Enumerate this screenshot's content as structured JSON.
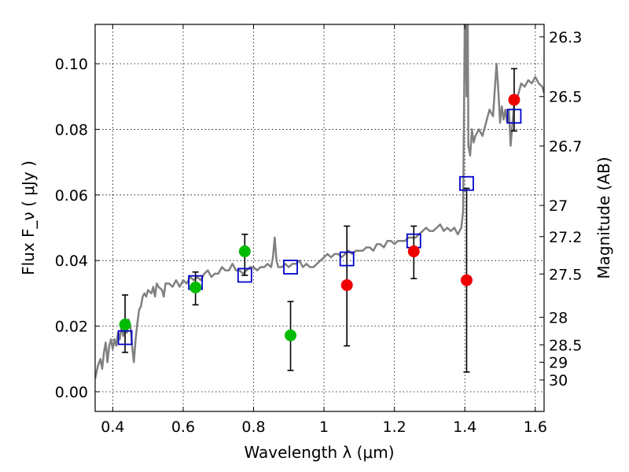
{
  "chart_data": {
    "type": "scatter",
    "xlabel": "Wavelength  λ (μm)",
    "ylabel": "Flux  F_ν  ( μJy )",
    "y2label": "Magnitude (AB)",
    "xlim": [
      0.35,
      1.625
    ],
    "ylim": [
      -0.006,
      0.112
    ],
    "grid": true,
    "x_ticks": [
      0.4,
      0.6,
      0.8,
      1.0,
      1.2,
      1.4,
      1.6
    ],
    "x_tick_labels": [
      "0.4",
      "0.6",
      "0.8",
      "1",
      "1.2",
      "1.4",
      "1.6"
    ],
    "y_ticks": [
      0.0,
      0.02,
      0.04,
      0.06,
      0.08,
      0.1
    ],
    "y_tick_labels": [
      "0.00",
      "0.02",
      "0.04",
      "0.06",
      "0.08",
      "0.10"
    ],
    "y2_ticks": [
      {
        "label": "26.3",
        "flux": 0.1082
      },
      {
        "label": "26.5",
        "flux": 0.09
      },
      {
        "label": "26.7",
        "flux": 0.0749
      },
      {
        "label": "27",
        "flux": 0.0568
      },
      {
        "label": "27.2",
        "flux": 0.0473
      },
      {
        "label": "27.5",
        "flux": 0.0359
      },
      {
        "label": "28",
        "flux": 0.0227
      },
      {
        "label": "28.5",
        "flux": 0.0143
      },
      {
        "label": "29",
        "flux": 0.009
      },
      {
        "label": "30",
        "flux": 0.0036
      }
    ],
    "series": [
      {
        "marker": "line",
        "color": "#808080",
        "points": [
          [
            0.35,
            0.004
          ],
          [
            0.358,
            0.008
          ],
          [
            0.365,
            0.01
          ],
          [
            0.37,
            0.007
          ],
          [
            0.375,
            0.012
          ],
          [
            0.38,
            0.015
          ],
          [
            0.385,
            0.009
          ],
          [
            0.39,
            0.014
          ],
          [
            0.395,
            0.016
          ],
          [
            0.4,
            0.013
          ],
          [
            0.405,
            0.016
          ],
          [
            0.41,
            0.014
          ],
          [
            0.415,
            0.018
          ],
          [
            0.42,
            0.016
          ],
          [
            0.425,
            0.02
          ],
          [
            0.43,
            0.017
          ],
          [
            0.435,
            0.021
          ],
          [
            0.44,
            0.018
          ],
          [
            0.445,
            0.022
          ],
          [
            0.45,
            0.02
          ],
          [
            0.455,
            0.014
          ],
          [
            0.46,
            0.009
          ],
          [
            0.465,
            0.016
          ],
          [
            0.47,
            0.021
          ],
          [
            0.475,
            0.025
          ],
          [
            0.48,
            0.026
          ],
          [
            0.485,
            0.029
          ],
          [
            0.49,
            0.03
          ],
          [
            0.495,
            0.029
          ],
          [
            0.5,
            0.031
          ],
          [
            0.51,
            0.03
          ],
          [
            0.515,
            0.032
          ],
          [
            0.52,
            0.029
          ],
          [
            0.525,
            0.033
          ],
          [
            0.53,
            0.032
          ],
          [
            0.54,
            0.031
          ],
          [
            0.545,
            0.029
          ],
          [
            0.55,
            0.033
          ],
          [
            0.56,
            0.033
          ],
          [
            0.57,
            0.032
          ],
          [
            0.58,
            0.034
          ],
          [
            0.59,
            0.032
          ],
          [
            0.6,
            0.034
          ],
          [
            0.61,
            0.033
          ],
          [
            0.62,
            0.035
          ],
          [
            0.63,
            0.034
          ],
          [
            0.64,
            0.035
          ],
          [
            0.65,
            0.034
          ],
          [
            0.66,
            0.036
          ],
          [
            0.67,
            0.037
          ],
          [
            0.68,
            0.035
          ],
          [
            0.69,
            0.036
          ],
          [
            0.7,
            0.036
          ],
          [
            0.71,
            0.038
          ],
          [
            0.72,
            0.037
          ],
          [
            0.73,
            0.037
          ],
          [
            0.74,
            0.039
          ],
          [
            0.75,
            0.037
          ],
          [
            0.76,
            0.037
          ],
          [
            0.77,
            0.036
          ],
          [
            0.78,
            0.037
          ],
          [
            0.79,
            0.038
          ],
          [
            0.8,
            0.038
          ],
          [
            0.81,
            0.037
          ],
          [
            0.82,
            0.038
          ],
          [
            0.83,
            0.038
          ],
          [
            0.84,
            0.039
          ],
          [
            0.85,
            0.038
          ],
          [
            0.855,
            0.041
          ],
          [
            0.86,
            0.047
          ],
          [
            0.865,
            0.04
          ],
          [
            0.87,
            0.038
          ],
          [
            0.88,
            0.038
          ],
          [
            0.89,
            0.039
          ],
          [
            0.9,
            0.038
          ],
          [
            0.91,
            0.039
          ],
          [
            0.92,
            0.039
          ],
          [
            0.93,
            0.04
          ],
          [
            0.94,
            0.038
          ],
          [
            0.95,
            0.039
          ],
          [
            0.96,
            0.038
          ],
          [
            0.97,
            0.038
          ],
          [
            0.98,
            0.039
          ],
          [
            0.99,
            0.04
          ],
          [
            1.0,
            0.041
          ],
          [
            1.01,
            0.042
          ],
          [
            1.02,
            0.041
          ],
          [
            1.03,
            0.042
          ],
          [
            1.04,
            0.042
          ],
          [
            1.05,
            0.041
          ],
          [
            1.06,
            0.042
          ],
          [
            1.07,
            0.043
          ],
          [
            1.08,
            0.042
          ],
          [
            1.09,
            0.043
          ],
          [
            1.1,
            0.043
          ],
          [
            1.11,
            0.043
          ],
          [
            1.12,
            0.044
          ],
          [
            1.13,
            0.044
          ],
          [
            1.14,
            0.043
          ],
          [
            1.15,
            0.045
          ],
          [
            1.16,
            0.045
          ],
          [
            1.17,
            0.044
          ],
          [
            1.18,
            0.046
          ],
          [
            1.19,
            0.046
          ],
          [
            1.2,
            0.045
          ],
          [
            1.21,
            0.046
          ],
          [
            1.22,
            0.046
          ],
          [
            1.23,
            0.046
          ],
          [
            1.24,
            0.047
          ],
          [
            1.25,
            0.047
          ],
          [
            1.26,
            0.047
          ],
          [
            1.27,
            0.048
          ],
          [
            1.28,
            0.049
          ],
          [
            1.29,
            0.05
          ],
          [
            1.3,
            0.049
          ],
          [
            1.31,
            0.049
          ],
          [
            1.32,
            0.05
          ],
          [
            1.33,
            0.051
          ],
          [
            1.34,
            0.049
          ],
          [
            1.35,
            0.05
          ],
          [
            1.36,
            0.049
          ],
          [
            1.37,
            0.05
          ],
          [
            1.38,
            0.048
          ],
          [
            1.39,
            0.05
          ],
          [
            1.395,
            0.055
          ],
          [
            1.398,
            0.09
          ],
          [
            1.4,
            0.118
          ],
          [
            1.402,
            0.112
          ],
          [
            1.405,
            0.09
          ],
          [
            1.408,
            0.118
          ],
          [
            1.41,
            0.075
          ],
          [
            1.415,
            0.072
          ],
          [
            1.42,
            0.08
          ],
          [
            1.425,
            0.076
          ],
          [
            1.43,
            0.078
          ],
          [
            1.44,
            0.08
          ],
          [
            1.45,
            0.078
          ],
          [
            1.46,
            0.082
          ],
          [
            1.47,
            0.086
          ],
          [
            1.48,
            0.084
          ],
          [
            1.49,
            0.1
          ],
          [
            1.495,
            0.092
          ],
          [
            1.5,
            0.082
          ],
          [
            1.505,
            0.087
          ],
          [
            1.51,
            0.083
          ],
          [
            1.515,
            0.086
          ],
          [
            1.52,
            0.082
          ],
          [
            1.525,
            0.086
          ],
          [
            1.53,
            0.075
          ],
          [
            1.54,
            0.088
          ],
          [
            1.55,
            0.09
          ],
          [
            1.56,
            0.094
          ],
          [
            1.57,
            0.093
          ],
          [
            1.58,
            0.095
          ],
          [
            1.59,
            0.094
          ],
          [
            1.6,
            0.096
          ],
          [
            1.61,
            0.094
          ],
          [
            1.62,
            0.093
          ],
          [
            1.625,
            0.091
          ]
        ]
      },
      {
        "marker": "open-square",
        "color": "#0000cc",
        "points": [
          [
            0.435,
            0.0165
          ],
          [
            0.635,
            0.0333
          ],
          [
            0.775,
            0.0355
          ],
          [
            0.905,
            0.038
          ],
          [
            1.065,
            0.0405
          ],
          [
            1.255,
            0.046
          ],
          [
            1.405,
            0.0635
          ],
          [
            1.54,
            0.084
          ]
        ]
      },
      {
        "marker": "circle",
        "color": "#00bb00",
        "points": [
          {
            "x": 0.435,
            "y": 0.0205,
            "lo": 0.012,
            "hi": 0.0295
          },
          {
            "x": 0.635,
            "y": 0.0318,
            "lo": 0.0265,
            "hi": 0.0365
          },
          {
            "x": 0.775,
            "y": 0.0428,
            "lo": 0.0355,
            "hi": 0.048
          },
          {
            "x": 0.905,
            "y": 0.0172,
            "lo": 0.0065,
            "hi": 0.0275
          }
        ]
      },
      {
        "marker": "circle",
        "color": "#ee0000",
        "points": [
          {
            "x": 1.065,
            "y": 0.0325,
            "lo": 0.014,
            "hi": 0.0505
          },
          {
            "x": 1.255,
            "y": 0.0428,
            "lo": 0.0345,
            "hi": 0.0505
          },
          {
            "x": 1.405,
            "y": 0.034,
            "lo": 0.006,
            "hi": 0.062
          },
          {
            "x": 1.54,
            "y": 0.089,
            "lo": 0.0795,
            "hi": 0.0985
          }
        ]
      }
    ]
  }
}
